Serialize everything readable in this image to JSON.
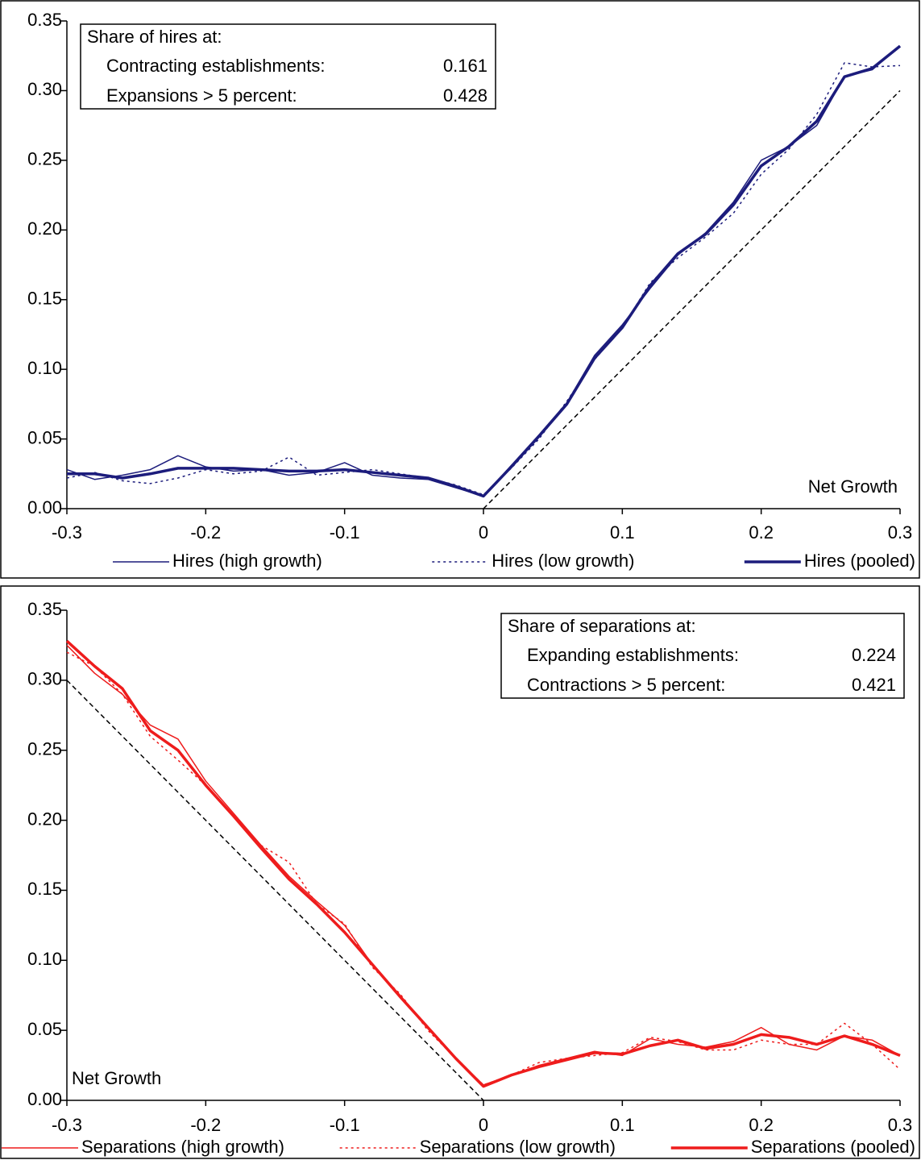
{
  "chart_data": [
    {
      "type": "line",
      "xlabel": "Net Growth",
      "xlabel_corner": "bottom-right",
      "x": [
        -0.3,
        -0.28,
        -0.26,
        -0.24,
        -0.22,
        -0.2,
        -0.18,
        -0.16,
        -0.14,
        -0.12,
        -0.1,
        -0.08,
        -0.06,
        -0.04,
        -0.02,
        0,
        0.02,
        0.04,
        0.06,
        0.08,
        0.1,
        0.12,
        0.14,
        0.16,
        0.18,
        0.2,
        0.22,
        0.24,
        0.26,
        0.28,
        0.3
      ],
      "series": [
        {
          "name": "Hires (high growth)",
          "color": "#1c1c7c",
          "width": 1.5,
          "dash": "solid",
          "values": [
            0.028,
            0.021,
            0.024,
            0.028,
            0.038,
            0.03,
            0.027,
            0.028,
            0.024,
            0.026,
            0.033,
            0.024,
            0.022,
            0.021,
            0.015,
            0.009,
            0.031,
            0.053,
            0.076,
            0.11,
            0.132,
            0.158,
            0.182,
            0.198,
            0.22,
            0.25,
            0.26,
            0.275,
            0.31,
            0.315,
            0.332
          ]
        },
        {
          "name": "Hires (low growth)",
          "color": "#1c1c7c",
          "width": 1.5,
          "dash": "dotted",
          "values": [
            0.022,
            0.026,
            0.02,
            0.018,
            0.022,
            0.028,
            0.025,
            0.027,
            0.037,
            0.024,
            0.026,
            0.028,
            0.025,
            0.022,
            0.017,
            0.01,
            0.029,
            0.05,
            0.077,
            0.107,
            0.13,
            0.162,
            0.18,
            0.195,
            0.212,
            0.24,
            0.258,
            0.283,
            0.32,
            0.317,
            0.318
          ]
        },
        {
          "name": "Hires (pooled)",
          "color": "#1c1c7c",
          "width": 3.5,
          "dash": "solid",
          "values": [
            0.025,
            0.025,
            0.022,
            0.025,
            0.029,
            0.029,
            0.029,
            0.028,
            0.027,
            0.027,
            0.028,
            0.026,
            0.024,
            0.022,
            0.016,
            0.009,
            0.03,
            0.052,
            0.075,
            0.108,
            0.13,
            0.16,
            0.183,
            0.197,
            0.218,
            0.246,
            0.26,
            0.278,
            0.31,
            0.316,
            0.332
          ]
        }
      ],
      "reference_line": {
        "x": [
          0,
          0.3
        ],
        "y": [
          0,
          0.3
        ]
      },
      "xlim": [
        -0.3,
        0.3
      ],
      "xticks": [
        -0.3,
        -0.2,
        -0.1,
        0,
        0.1,
        0.2,
        0.3
      ],
      "ylim": [
        0,
        0.35
      ],
      "yticks": [
        {
          "value": 0,
          "label": "0.00"
        },
        {
          "value": 0.05,
          "label": "0.05"
        },
        {
          "value": 0.1,
          "label": "0.10"
        },
        {
          "value": 0.15,
          "label": "0.15"
        },
        {
          "value": 0.2,
          "label": "0.20"
        },
        {
          "value": 0.25,
          "label": "0.25"
        },
        {
          "value": 0.3,
          "label": "0.30"
        },
        {
          "value": 0.35,
          "label": "0.35"
        }
      ],
      "info_box": {
        "corner": "top-left",
        "title": "Share of hires at:",
        "rows": [
          {
            "label": "Contracting establishments:",
            "value": 0.161
          },
          {
            "label": "Expansions > 5 percent:",
            "value": 0.428
          }
        ]
      }
    },
    {
      "type": "line",
      "xlabel": "Net Growth",
      "xlabel_corner": "bottom-left",
      "x": [
        -0.3,
        -0.28,
        -0.26,
        -0.24,
        -0.22,
        -0.2,
        -0.18,
        -0.16,
        -0.14,
        -0.12,
        -0.1,
        -0.08,
        -0.06,
        -0.04,
        -0.02,
        0,
        0.02,
        0.04,
        0.06,
        0.08,
        0.1,
        0.12,
        0.14,
        0.16,
        0.18,
        0.2,
        0.22,
        0.24,
        0.26,
        0.28,
        0.3
      ],
      "series": [
        {
          "name": "Separations (high growth)",
          "color": "#ee1c1c",
          "width": 1.5,
          "dash": "solid",
          "values": [
            0.325,
            0.305,
            0.29,
            0.268,
            0.258,
            0.228,
            0.205,
            0.182,
            0.16,
            0.142,
            0.125,
            0.097,
            0.075,
            0.052,
            0.03,
            0.011,
            0.018,
            0.025,
            0.03,
            0.035,
            0.032,
            0.044,
            0.04,
            0.038,
            0.042,
            0.052,
            0.04,
            0.036,
            0.046,
            0.043,
            0.032
          ]
        },
        {
          "name": "Separations (low growth)",
          "color": "#ee1c1c",
          "width": 1.5,
          "dash": "dotted",
          "values": [
            0.32,
            0.31,
            0.29,
            0.26,
            0.243,
            0.225,
            0.203,
            0.182,
            0.17,
            0.14,
            0.126,
            0.095,
            0.076,
            0.05,
            0.03,
            0.011,
            0.018,
            0.027,
            0.03,
            0.032,
            0.034,
            0.045,
            0.042,
            0.036,
            0.036,
            0.043,
            0.04,
            0.04,
            0.055,
            0.04,
            0.022
          ]
        },
        {
          "name": "Separations (pooled)",
          "color": "#ee1c1c",
          "width": 3.5,
          "dash": "solid",
          "values": [
            0.328,
            0.31,
            0.294,
            0.264,
            0.25,
            0.225,
            0.203,
            0.18,
            0.158,
            0.14,
            0.12,
            0.097,
            0.074,
            0.052,
            0.03,
            0.01,
            0.018,
            0.024,
            0.029,
            0.034,
            0.033,
            0.039,
            0.043,
            0.037,
            0.04,
            0.047,
            0.045,
            0.04,
            0.046,
            0.04,
            0.032
          ]
        }
      ],
      "reference_line": {
        "x": [
          -0.3,
          0
        ],
        "y": [
          0.3,
          0
        ]
      },
      "xlim": [
        -0.3,
        0.3
      ],
      "xticks": [
        -0.3,
        -0.2,
        -0.1,
        0,
        0.1,
        0.2,
        0.3
      ],
      "ylim": [
        0,
        0.35
      ],
      "yticks": [
        {
          "value": 0,
          "label": "0.00"
        },
        {
          "value": 0.05,
          "label": "0.05"
        },
        {
          "value": 0.1,
          "label": "0.10"
        },
        {
          "value": 0.15,
          "label": "0.15"
        },
        {
          "value": 0.2,
          "label": "0.20"
        },
        {
          "value": 0.25,
          "label": "0.25"
        },
        {
          "value": 0.3,
          "label": "0.30"
        },
        {
          "value": 0.35,
          "label": "0.35"
        }
      ],
      "info_box": {
        "corner": "top-right",
        "title": "Share of separations at:",
        "rows": [
          {
            "label": "Expanding establishments:",
            "value": 0.224
          },
          {
            "label": "Contractions > 5 percent:",
            "value": 0.421
          }
        ]
      }
    }
  ]
}
